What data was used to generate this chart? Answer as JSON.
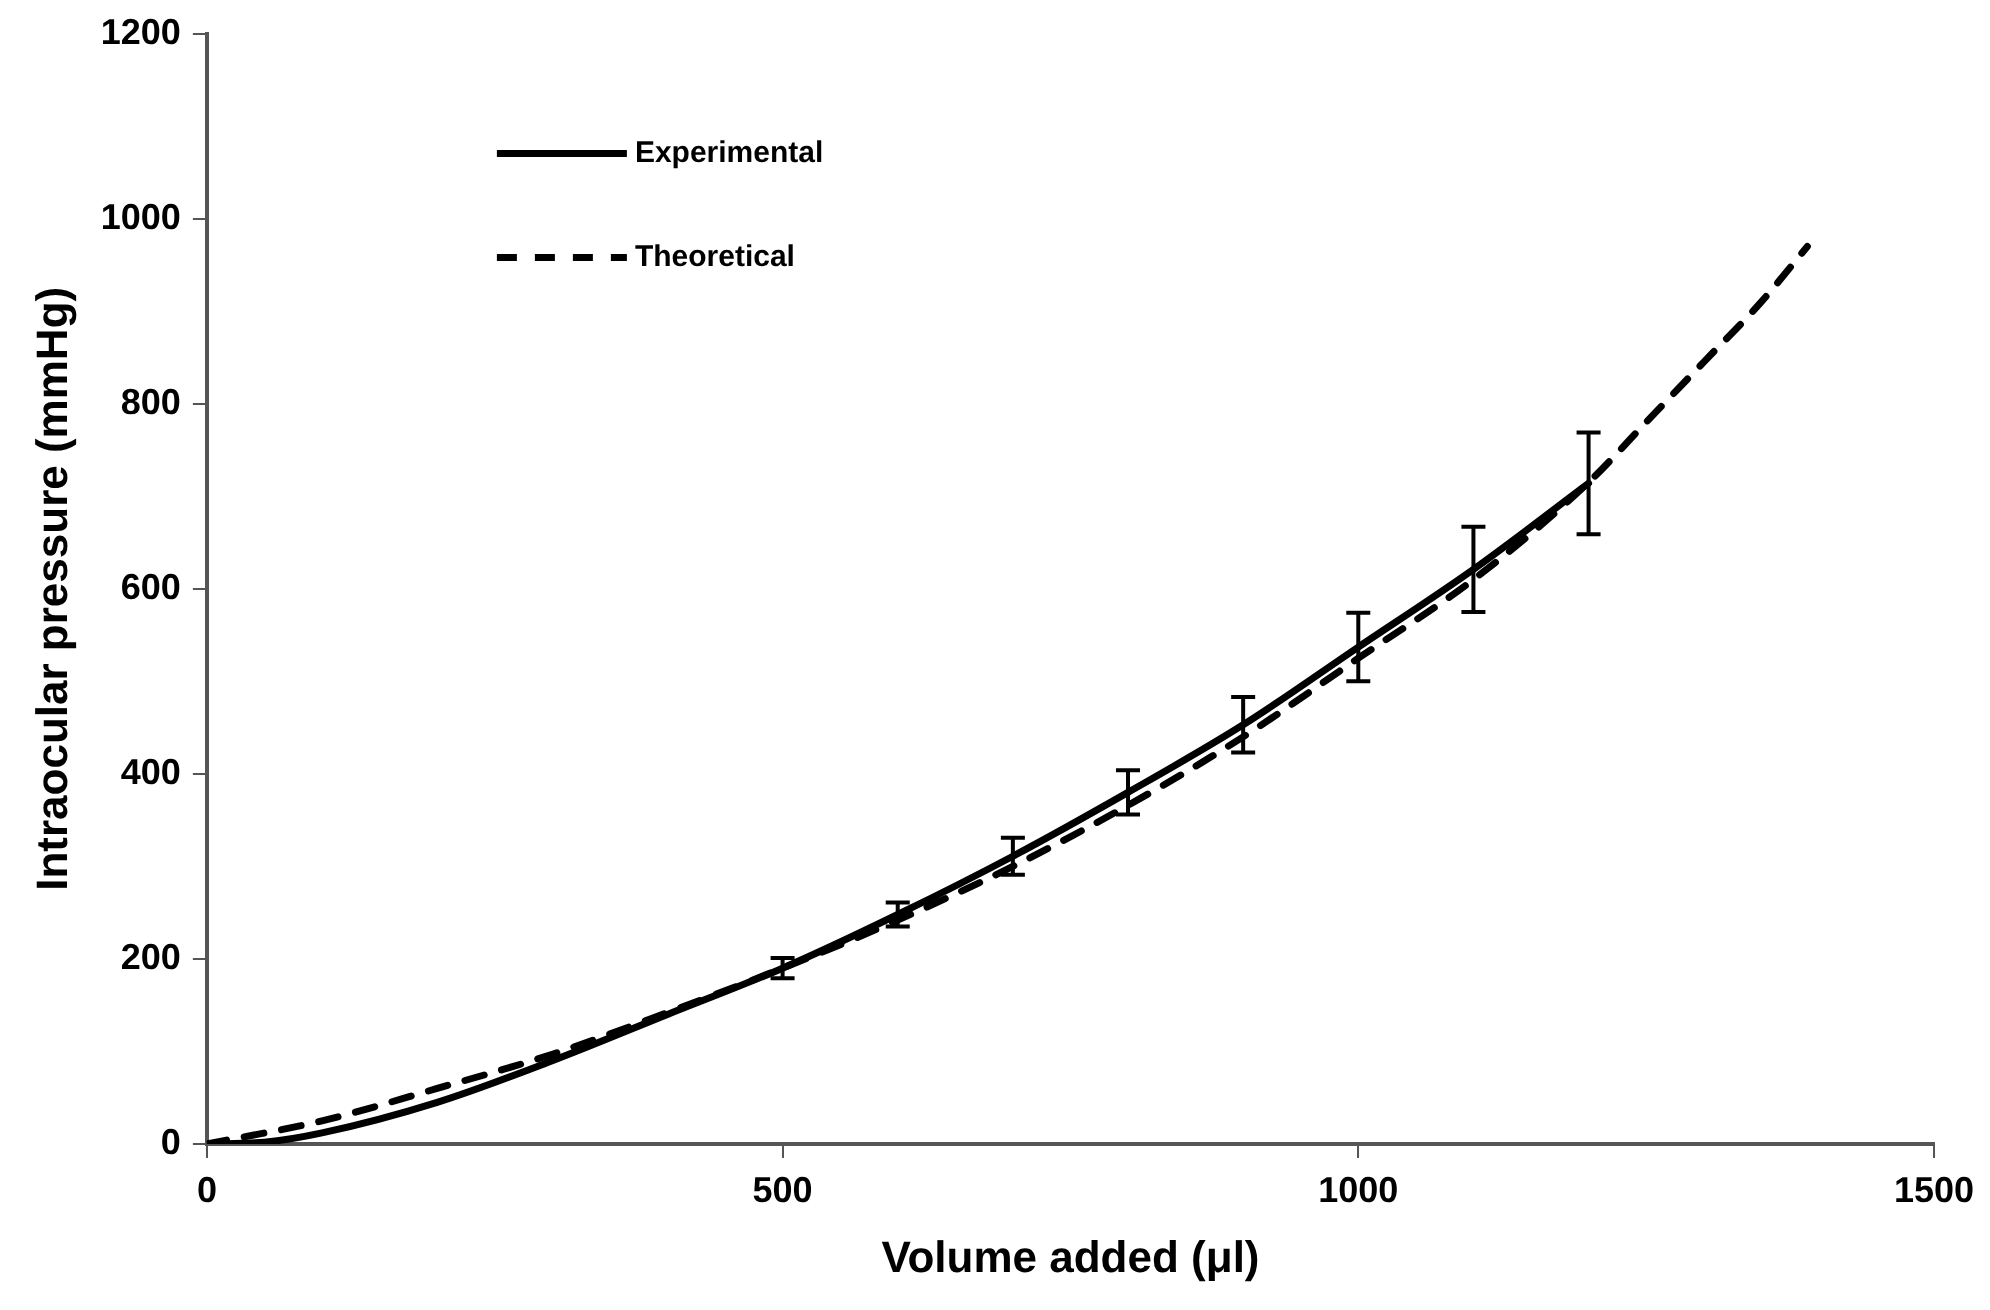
{
  "chart_data": {
    "type": "line",
    "xlabel": "Volume added (μl)",
    "ylabel": "Intraocular pressure (mmHg)",
    "xlim": [
      0,
      1500
    ],
    "xticks": [
      0,
      500,
      1000,
      1500
    ],
    "ylim": [
      0,
      1200
    ],
    "yticks": [
      0,
      200,
      400,
      600,
      800,
      1000,
      1200
    ],
    "grid": false,
    "legend": "top left",
    "marker": "none",
    "series": [
      {
        "name": "Experimental",
        "color": "#000000",
        "line_style": "solid",
        "x": [
          0,
          50,
          100,
          200,
          300,
          400,
          500,
          600,
          700,
          800,
          900,
          1000,
          1100,
          1200
        ],
        "values": [
          0,
          2,
          12,
          45,
          90,
          140,
          190,
          248,
          311,
          380,
          453,
          537,
          621,
          714
        ],
        "errors": [
          null,
          null,
          null,
          null,
          null,
          null,
          11,
          13,
          20,
          24,
          30,
          37,
          46,
          55
        ]
      },
      {
        "name": "Theoretical",
        "color": "#000000",
        "line_style": "dashed",
        "x": [
          0,
          100,
          200,
          300,
          400,
          500,
          600,
          700,
          800,
          900,
          1000,
          1100,
          1200,
          1250,
          1300,
          1350,
          1390
        ],
        "values": [
          0,
          25,
          60,
          97,
          142,
          190,
          242,
          300,
          366,
          440,
          525,
          610,
          715,
          780,
          845,
          910,
          970
        ]
      }
    ]
  }
}
